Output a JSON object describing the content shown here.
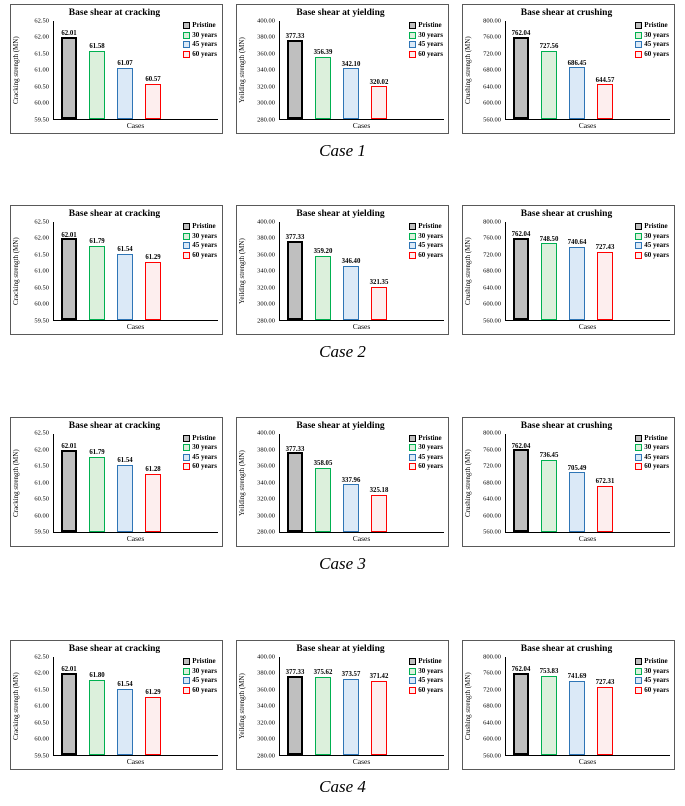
{
  "series_styles": [
    {
      "label": "Pristine",
      "fill": "#bfbfbf",
      "border": "#000000"
    },
    {
      "label": "30 years",
      "fill": "#dcf0dc",
      "border": "#00b050"
    },
    {
      "label": "45 years",
      "fill": "#dbe9f7",
      "border": "#2e75b6"
    },
    {
      "label": "60 years",
      "fill": "#fdeeee",
      "border": "#ff0000"
    }
  ],
  "chart_data": [
    {
      "caption": "Case 1",
      "charts": [
        {
          "type": "bar",
          "title": "Base shear at cracking",
          "ylabel": "Cracking strength (MN)",
          "xlabel": "Cases",
          "ylim": [
            59.5,
            62.5
          ],
          "ytick_step": 0.5,
          "categories": [
            "Pristine",
            "30 years",
            "45 years",
            "60 years"
          ],
          "values": [
            62.01,
            61.58,
            61.07,
            60.57
          ],
          "legend_position": "top-right",
          "grid": false
        },
        {
          "type": "bar",
          "title": "Base shear at yielding",
          "ylabel": "Yeilding strength (MN)",
          "xlabel": "Cases",
          "ylim": [
            280.0,
            400.0
          ],
          "ytick_step": 20.0,
          "categories": [
            "Pristine",
            "30 years",
            "45 years",
            "60 years"
          ],
          "values": [
            377.33,
            356.39,
            342.1,
            320.02
          ],
          "legend_position": "top-right",
          "grid": false
        },
        {
          "type": "bar",
          "title": "Base shear at crushing",
          "ylabel": "Crushing strength (MN)",
          "xlabel": "Cases",
          "ylim": [
            560.0,
            800.0
          ],
          "ytick_step": 40.0,
          "categories": [
            "Pristine",
            "30 years",
            "45 years",
            "60 years"
          ],
          "values": [
            762.04,
            727.56,
            686.45,
            644.57
          ],
          "legend_position": "top-right",
          "grid": false
        }
      ]
    },
    {
      "caption": "Case 2",
      "charts": [
        {
          "type": "bar",
          "title": "Base shear at cracking",
          "ylabel": "Cracking strength (MN)",
          "xlabel": "Cases",
          "ylim": [
            59.5,
            62.5
          ],
          "ytick_step": 0.5,
          "categories": [
            "Pristine",
            "30 years",
            "45 years",
            "60 years"
          ],
          "values": [
            62.01,
            61.79,
            61.54,
            61.29
          ],
          "legend_position": "top-right",
          "grid": false
        },
        {
          "type": "bar",
          "title": "Base shear at yielding",
          "ylabel": "Yeilding strength (MN)",
          "xlabel": "Cases",
          "ylim": [
            280.0,
            400.0
          ],
          "ytick_step": 20.0,
          "categories": [
            "Pristine",
            "30 years",
            "45 years",
            "60 years"
          ],
          "values": [
            377.33,
            359.2,
            346.4,
            321.35
          ],
          "legend_position": "top-right",
          "grid": false
        },
        {
          "type": "bar",
          "title": "Base shear at crushing",
          "ylabel": "Crushing strength (MN)",
          "xlabel": "Cases",
          "ylim": [
            560.0,
            800.0
          ],
          "ytick_step": 40.0,
          "categories": [
            "Pristine",
            "30 years",
            "45 years",
            "60 years"
          ],
          "values": [
            762.04,
            748.5,
            740.64,
            727.43
          ],
          "legend_position": "top-right",
          "grid": false
        }
      ]
    },
    {
      "caption": "Case 3",
      "charts": [
        {
          "type": "bar",
          "title": "Base shear at cracking",
          "ylabel": "Cracking strength (MN)",
          "xlabel": "Cases",
          "ylim": [
            59.5,
            62.5
          ],
          "ytick_step": 0.5,
          "categories": [
            "Pristine",
            "30 years",
            "45 years",
            "60 years"
          ],
          "values": [
            62.01,
            61.79,
            61.54,
            61.28
          ],
          "legend_position": "top-right",
          "grid": false
        },
        {
          "type": "bar",
          "title": "Base shear at yielding",
          "ylabel": "Yeilding strength (MN)",
          "xlabel": "Cases",
          "ylim": [
            280.0,
            400.0
          ],
          "ytick_step": 20.0,
          "categories": [
            "Pristine",
            "30 years",
            "45 years",
            "60 years"
          ],
          "values": [
            377.33,
            358.05,
            337.96,
            325.18
          ],
          "legend_position": "top-right",
          "grid": false
        },
        {
          "type": "bar",
          "title": "Base shear at crushing",
          "ylabel": "Crushing strength (MN)",
          "xlabel": "Cases",
          "ylim": [
            560.0,
            800.0
          ],
          "ytick_step": 40.0,
          "categories": [
            "Pristine",
            "30 years",
            "45 years",
            "60 years"
          ],
          "values": [
            762.04,
            736.45,
            705.49,
            672.31
          ],
          "legend_position": "top-right",
          "grid": false
        }
      ]
    },
    {
      "caption": "Case 4",
      "charts": [
        {
          "type": "bar",
          "title": "Base shear at cracking",
          "ylabel": "Cracking strength (MN)",
          "xlabel": "Cases",
          "ylim": [
            59.5,
            62.5
          ],
          "ytick_step": 0.5,
          "categories": [
            "Pristine",
            "30 years",
            "45 years",
            "60 years"
          ],
          "values": [
            62.01,
            61.8,
            61.54,
            61.29
          ],
          "legend_position": "top-right",
          "grid": false
        },
        {
          "type": "bar",
          "title": "Base shear at yielding",
          "ylabel": "Yeilding strength (MN)",
          "xlabel": "Cases",
          "ylim": [
            280.0,
            400.0
          ],
          "ytick_step": 20.0,
          "categories": [
            "Pristine",
            "30 years",
            "45 years",
            "60 years"
          ],
          "values": [
            377.33,
            375.62,
            373.57,
            371.42
          ],
          "legend_position": "top-right",
          "grid": false
        },
        {
          "type": "bar",
          "title": "Base shear at crushing",
          "ylabel": "Crushing strength (MN)",
          "xlabel": "Cases",
          "ylim": [
            560.0,
            800.0
          ],
          "ytick_step": 40.0,
          "categories": [
            "Pristine",
            "30 years",
            "45 years",
            "60 years"
          ],
          "values": [
            762.04,
            753.83,
            741.69,
            727.43
          ],
          "legend_position": "top-right",
          "grid": false
        }
      ]
    }
  ]
}
